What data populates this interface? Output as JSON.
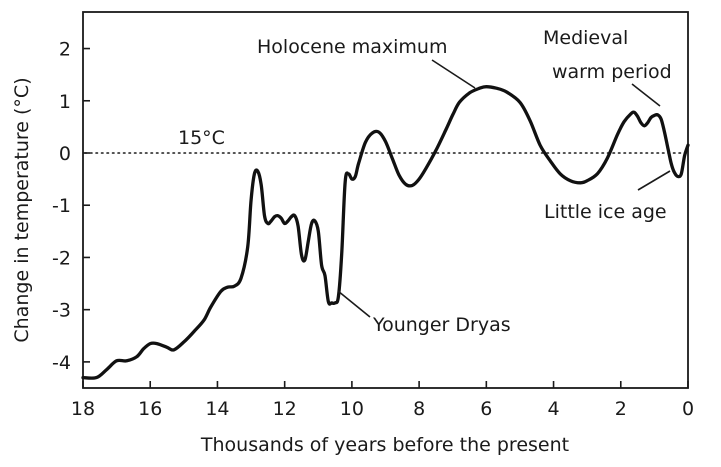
{
  "chart_data": {
    "type": "line",
    "xlabel": "Thousands of years before the present",
    "ylabel": "Change in temperature (°C)",
    "xlim": [
      18,
      0
    ],
    "ylim": [
      -4.5,
      2.7
    ],
    "x_ticks": [
      18,
      16,
      14,
      12,
      10,
      8,
      6,
      4,
      2,
      0
    ],
    "y_ticks": [
      2,
      1,
      0,
      -1,
      -2,
      -3,
      -4
    ],
    "x_tick_labels": [
      "18",
      "16",
      "14",
      "12",
      "10",
      "8",
      "6",
      "4",
      "2",
      "0"
    ],
    "y_tick_labels": [
      "2",
      "1",
      "0",
      "-1",
      "-2",
      "-3",
      "-4"
    ],
    "grid": false,
    "reference_line": {
      "y": 0,
      "label": "15°C",
      "style": "dotted"
    },
    "series": [
      {
        "x": [
          18,
          17.6,
          17.3,
          17.0,
          16.7,
          16.4,
          16.2,
          16.0,
          15.8,
          15.5,
          15.3,
          15.0,
          14.7,
          14.4,
          14.2,
          13.9,
          13.7,
          13.5,
          13.3,
          13.1,
          13.0,
          12.9,
          12.8,
          12.7,
          12.6,
          12.5,
          12.4,
          12.3,
          12.2,
          12.1,
          12.0,
          11.9,
          11.8,
          11.7,
          11.6,
          11.5,
          11.4,
          11.3,
          11.2,
          11.1,
          11.0,
          10.9,
          10.8,
          10.7,
          10.6,
          10.5,
          10.4,
          10.3,
          10.2,
          10.1,
          10.0,
          9.9,
          9.8,
          9.6,
          9.4,
          9.2,
          9.0,
          8.8,
          8.6,
          8.4,
          8.2,
          8.0,
          7.8,
          7.5,
          7.2,
          7.0,
          6.8,
          6.5,
          6.2,
          6.0,
          5.7,
          5.4,
          5.0,
          4.7,
          4.4,
          4.1,
          3.8,
          3.5,
          3.2,
          3.0,
          2.7,
          2.4,
          2.1,
          1.9,
          1.7,
          1.6,
          1.5,
          1.4,
          1.3,
          1.2,
          1.1,
          1.0,
          0.9,
          0.8,
          0.7,
          0.6,
          0.5,
          0.4,
          0.3,
          0.2,
          0.1,
          0.0
        ],
        "values": [
          -4.3,
          -4.3,
          -4.15,
          -3.98,
          -3.98,
          -3.9,
          -3.75,
          -3.65,
          -3.65,
          -3.72,
          -3.77,
          -3.62,
          -3.42,
          -3.2,
          -2.95,
          -2.65,
          -2.57,
          -2.55,
          -2.4,
          -1.8,
          -0.9,
          -0.4,
          -0.35,
          -0.6,
          -1.2,
          -1.35,
          -1.3,
          -1.22,
          -1.2,
          -1.25,
          -1.35,
          -1.3,
          -1.22,
          -1.2,
          -1.4,
          -1.95,
          -2.05,
          -1.7,
          -1.35,
          -1.3,
          -1.5,
          -2.15,
          -2.35,
          -2.85,
          -2.87,
          -2.87,
          -2.75,
          -1.9,
          -0.55,
          -0.4,
          -0.5,
          -0.45,
          -0.2,
          0.2,
          0.38,
          0.4,
          0.22,
          -0.1,
          -0.42,
          -0.6,
          -0.62,
          -0.5,
          -0.3,
          0.05,
          0.45,
          0.73,
          0.97,
          1.15,
          1.24,
          1.27,
          1.24,
          1.17,
          0.97,
          0.62,
          0.15,
          -0.15,
          -0.4,
          -0.53,
          -0.57,
          -0.53,
          -0.4,
          -0.1,
          0.35,
          0.6,
          0.75,
          0.78,
          0.7,
          0.58,
          0.52,
          0.58,
          0.68,
          0.72,
          0.73,
          0.65,
          0.4,
          0.1,
          -0.2,
          -0.38,
          -0.45,
          -0.4,
          -0.05,
          0.15
        ]
      }
    ],
    "annotations": [
      {
        "label": "Holocene maximum",
        "x": 6.2,
        "y": 1.2
      },
      {
        "label_line1": "Medieval",
        "label_line2": "warm period",
        "x": 0.75,
        "y": 0.8
      },
      {
        "label": "Little ice age",
        "x": 0.4,
        "y": -0.45
      },
      {
        "label": "Younger Dryas",
        "x": 10.5,
        "y": -2.85
      }
    ]
  }
}
